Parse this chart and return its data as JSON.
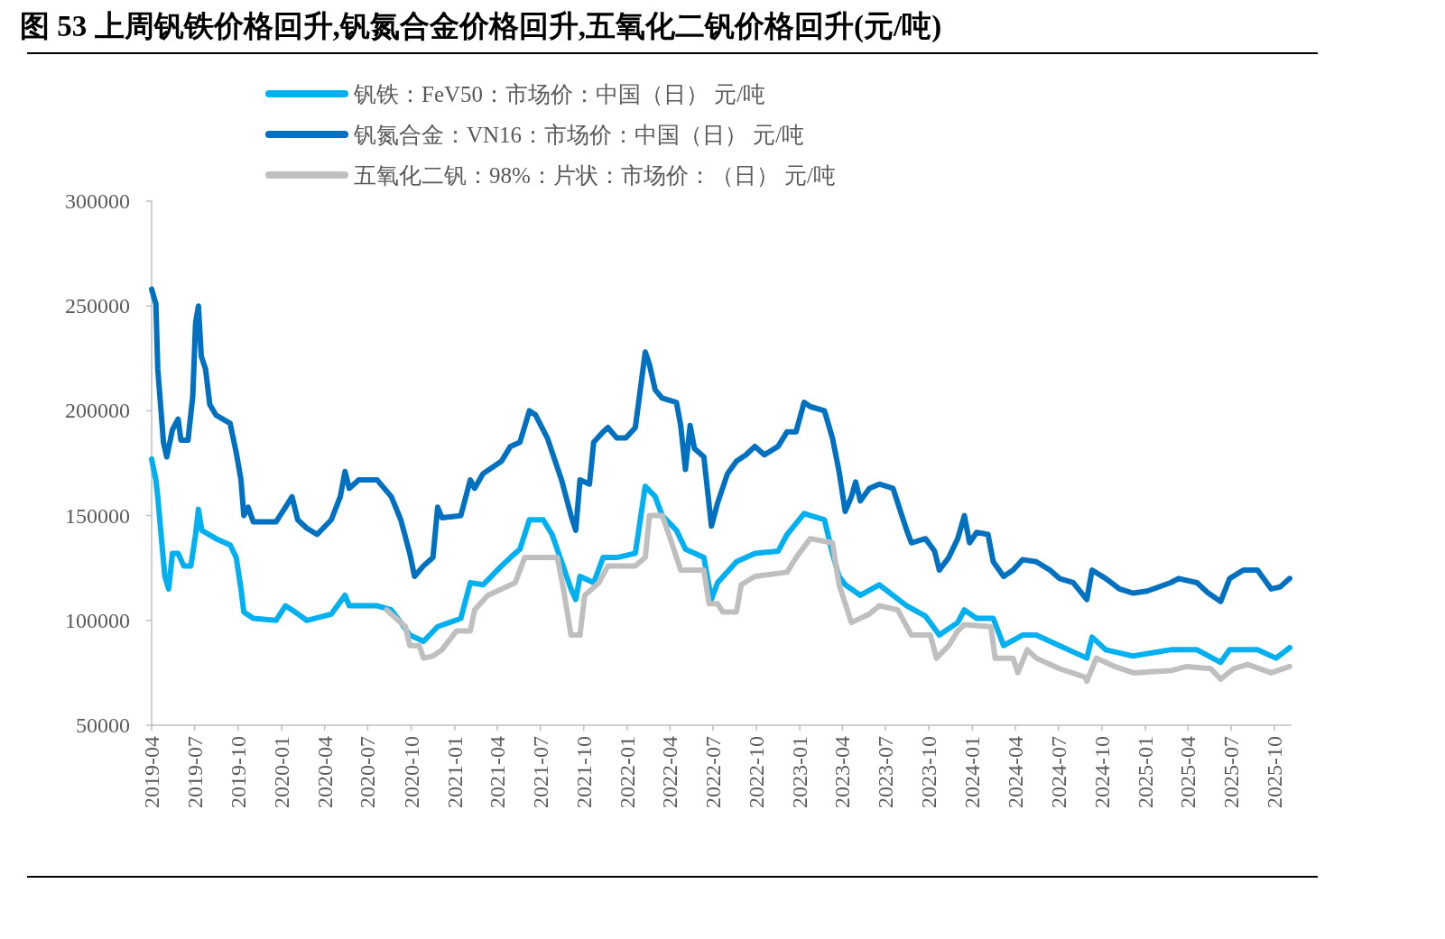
{
  "chart_data": {
    "type": "line",
    "title": "图 53 上周钒铁价格回升,钒氮合金价格回升,五氧化二钒价格回升(元/吨)",
    "xlim": [
      "2019-04-01",
      "2025-11-06"
    ],
    "xticks": [
      "2019-04",
      "2019-07",
      "2019-10",
      "2020-01",
      "2020-04",
      "2020-07",
      "2020-10",
      "2021-01",
      "2021-04",
      "2021-07",
      "2021-10",
      "2022-01",
      "2022-04",
      "2022-07",
      "2022-10",
      "2023-01",
      "2023-04",
      "2023-07",
      "2023-10",
      "2024-01",
      "2024-04",
      "2024-07",
      "2024-10",
      "2025-01",
      "2025-04",
      "2025-07",
      "2025-10"
    ],
    "ylim": [
      50000,
      300000
    ],
    "yticks": [
      50000,
      100000,
      150000,
      200000,
      250000,
      300000
    ],
    "legend": "top",
    "series": [
      {
        "name": "钒铁：FeV50：市场价：中国（日） 元/吨",
        "color": "#00b0f0",
        "x": [
          "2019-04-01",
          "2019-04-10",
          "2019-04-14",
          "2019-04-21",
          "2019-04-29",
          "2019-05-07",
          "2019-05-15",
          "2019-05-27",
          "2019-06-08",
          "2019-06-23",
          "2019-07-03",
          "2019-07-09",
          "2019-07-16",
          "2019-08-15",
          "2019-09-14",
          "2019-09-27",
          "2019-10-07",
          "2019-10-13",
          "2019-11-02",
          "2019-12-20",
          "2020-01-09",
          "2020-01-23",
          "2020-02-23",
          "2020-04-15",
          "2020-05-14",
          "2020-05-23",
          "2020-07-21",
          "2020-08-20",
          "2020-09-09",
          "2020-09-28",
          "2020-10-27",
          "2020-11-26",
          "2021-01-14",
          "2021-02-03",
          "2021-03-02",
          "2021-04-10",
          "2021-04-29",
          "2021-05-19",
          "2021-06-08",
          "2021-07-07",
          "2021-07-26",
          "2021-08-15",
          "2021-09-04",
          "2021-09-14",
          "2021-09-23",
          "2021-10-22",
          "2021-11-11",
          "2021-12-10",
          "2022-01-18",
          "2022-02-08",
          "2022-03-01",
          "2022-03-16",
          "2022-04-15",
          "2022-05-04",
          "2022-06-12",
          "2022-06-28",
          "2022-07-11",
          "2022-08-20",
          "2022-09-28",
          "2022-11-16",
          "2022-12-05",
          "2023-01-10",
          "2023-02-22",
          "2023-03-11",
          "2023-03-25",
          "2023-04-07",
          "2023-05-09",
          "2023-06-18",
          "2023-08-15",
          "2023-09-24",
          "2023-10-23",
          "2023-12-01",
          "2023-12-15",
          "2024-01-10",
          "2024-02-14",
          "2024-03-07",
          "2024-04-16",
          "2024-05-15",
          "2024-07-03",
          "2024-08-30",
          "2024-09-10",
          "2024-10-09",
          "2024-12-06",
          "2025-02-23",
          "2025-04-20",
          "2025-06-09",
          "2025-06-28",
          "2025-08-26",
          "2025-10-04",
          "2025-11-02"
        ],
        "values": [
          177000,
          167000,
          159000,
          141000,
          121000,
          115000,
          132000,
          132000,
          126000,
          126000,
          141000,
          153000,
          143000,
          139000,
          136000,
          130000,
          115000,
          104000,
          101000,
          100000,
          107000,
          105000,
          100000,
          103000,
          112000,
          107000,
          107000,
          105000,
          99000,
          93000,
          90000,
          97000,
          101000,
          118000,
          117000,
          126000,
          130000,
          134000,
          148000,
          148000,
          141000,
          128000,
          115000,
          110000,
          121000,
          118000,
          130000,
          130000,
          132000,
          164000,
          159000,
          150000,
          143000,
          134000,
          130000,
          110000,
          118000,
          128000,
          132000,
          133000,
          141000,
          151000,
          148000,
          132000,
          121000,
          117000,
          112000,
          117000,
          107000,
          102000,
          93000,
          99000,
          105000,
          101000,
          101000,
          88000,
          93000,
          93000,
          88000,
          82000,
          92000,
          86000,
          83000,
          86000,
          86000,
          80000,
          86000,
          86000,
          82000,
          87000
        ]
      },
      {
        "name": "钒氮合金：VN16：市场价：中国（日） 元/吨",
        "color": "#0070c0",
        "x": [
          "2019-04-01",
          "2019-04-10",
          "2019-04-14",
          "2019-04-26",
          "2019-05-03",
          "2019-05-15",
          "2019-05-27",
          "2019-06-02",
          "2019-06-17",
          "2019-06-27",
          "2019-07-03",
          "2019-07-09",
          "2019-07-15",
          "2019-07-24",
          "2019-08-02",
          "2019-08-15",
          "2019-09-14",
          "2019-09-27",
          "2019-10-07",
          "2019-10-13",
          "2019-10-22",
          "2019-11-02",
          "2019-12-20",
          "2020-01-09",
          "2020-01-23",
          "2020-02-04",
          "2020-02-23",
          "2020-03-16",
          "2020-04-15",
          "2020-05-04",
          "2020-05-14",
          "2020-05-23",
          "2020-06-12",
          "2020-07-21",
          "2020-08-20",
          "2020-09-09",
          "2020-09-28",
          "2020-10-08",
          "2020-10-27",
          "2020-11-16",
          "2020-11-26",
          "2020-12-05",
          "2021-01-14",
          "2021-02-03",
          "2021-02-12",
          "2021-03-02",
          "2021-04-10",
          "2021-04-29",
          "2021-05-19",
          "2021-06-08",
          "2021-06-21",
          "2021-07-16",
          "2021-08-15",
          "2021-09-04",
          "2021-09-14",
          "2021-09-23",
          "2021-10-13",
          "2021-10-22",
          "2021-11-11",
          "2021-11-21",
          "2021-12-10",
          "2021-12-29",
          "2022-01-18",
          "2022-02-08",
          "2022-02-17",
          "2022-03-01",
          "2022-03-16",
          "2022-04-15",
          "2022-04-24",
          "2022-05-04",
          "2022-05-14",
          "2022-05-23",
          "2022-06-12",
          "2022-06-28",
          "2022-07-11",
          "2022-08-01",
          "2022-08-20",
          "2022-09-09",
          "2022-09-28",
          "2022-10-18",
          "2022-11-16",
          "2022-12-05",
          "2022-12-24",
          "2023-01-10",
          "2023-01-23",
          "2023-02-22",
          "2023-03-11",
          "2023-03-25",
          "2023-04-07",
          "2023-04-20",
          "2023-04-29",
          "2023-05-09",
          "2023-05-28",
          "2023-06-18",
          "2023-07-17",
          "2023-08-02",
          "2023-08-15",
          "2023-08-25",
          "2023-09-24",
          "2023-10-13",
          "2023-10-23",
          "2023-11-12",
          "2023-12-01",
          "2023-12-15",
          "2023-12-26",
          "2024-01-10",
          "2024-02-03",
          "2024-02-14",
          "2024-03-07",
          "2024-03-27",
          "2024-04-16",
          "2024-05-15",
          "2024-06-13",
          "2024-07-03",
          "2024-08-01",
          "2024-08-30",
          "2024-09-10",
          "2024-10-09",
          "2024-11-07",
          "2024-12-06",
          "2025-01-05",
          "2025-02-23",
          "2025-03-12",
          "2025-04-20",
          "2025-05-14",
          "2025-06-09",
          "2025-06-28",
          "2025-07-27",
          "2025-08-26",
          "2025-09-24",
          "2025-10-13",
          "2025-11-02"
        ],
        "values": [
          258000,
          251000,
          220000,
          185000,
          178000,
          191000,
          196000,
          186000,
          186000,
          207000,
          242000,
          250000,
          226000,
          220000,
          203000,
          198000,
          194000,
          180000,
          167000,
          150000,
          154000,
          147000,
          147000,
          154000,
          159000,
          148000,
          144000,
          141000,
          148000,
          159000,
          171000,
          163000,
          167000,
          167000,
          159000,
          148000,
          132000,
          121000,
          126000,
          130000,
          154000,
          149000,
          150000,
          167000,
          163000,
          170000,
          176000,
          183000,
          185000,
          200000,
          198000,
          187000,
          167000,
          150000,
          143000,
          167000,
          165000,
          185000,
          190000,
          192000,
          187000,
          187000,
          192000,
          228000,
          222000,
          210000,
          206000,
          204000,
          193000,
          172000,
          193000,
          182000,
          178000,
          145000,
          156000,
          170000,
          176000,
          179000,
          183000,
          179000,
          183000,
          190000,
          190000,
          204000,
          202000,
          200000,
          187000,
          171000,
          152000,
          159000,
          166000,
          157000,
          163000,
          165000,
          163000,
          152000,
          143000,
          137000,
          139000,
          133000,
          124000,
          130000,
          139000,
          150000,
          137000,
          142000,
          141000,
          128000,
          121000,
          124000,
          129000,
          128000,
          124000,
          120000,
          118000,
          110000,
          124000,
          120000,
          115000,
          113000,
          114000,
          118000,
          120000,
          118000,
          113000,
          109000,
          120000,
          124000,
          124000,
          115000,
          116000,
          120000
        ]
      },
      {
        "name": "五氧化二钒：98%：片状：市场价：（日） 元/吨",
        "color": "#bfbfbf",
        "x": [
          "2020-08-10",
          "2020-08-30",
          "2020-09-19",
          "2020-09-28",
          "2020-10-18",
          "2020-10-27",
          "2020-11-16",
          "2020-12-05",
          "2021-01-05",
          "2021-02-03",
          "2021-02-12",
          "2021-03-12",
          "2021-04-10",
          "2021-05-09",
          "2021-05-29",
          "2021-08-06",
          "2021-08-19",
          "2021-09-04",
          "2021-09-23",
          "2021-10-03",
          "2021-11-02",
          "2021-11-21",
          "2022-01-18",
          "2022-02-08",
          "2022-02-17",
          "2022-03-16",
          "2022-04-02",
          "2022-04-24",
          "2022-06-12",
          "2022-06-23",
          "2022-07-11",
          "2022-07-22",
          "2022-08-20",
          "2022-08-30",
          "2022-09-28",
          "2022-12-05",
          "2022-12-24",
          "2023-01-23",
          "2023-03-11",
          "2023-03-25",
          "2023-04-20",
          "2023-05-28",
          "2023-06-18",
          "2023-07-27",
          "2023-08-25",
          "2023-10-04",
          "2023-10-17",
          "2023-11-12",
          "2023-12-01",
          "2023-12-15",
          "2024-02-09",
          "2024-02-18",
          "2024-03-27",
          "2024-04-06",
          "2024-04-26",
          "2024-05-15",
          "2024-07-03",
          "2024-08-26",
          "2024-08-30",
          "2024-09-19",
          "2024-10-09",
          "2024-10-28",
          "2024-12-06",
          "2025-02-23",
          "2025-03-29",
          "2025-05-19",
          "2025-06-09",
          "2025-07-07",
          "2025-08-05",
          "2025-09-24",
          "2025-11-02"
        ],
        "values": [
          105000,
          101000,
          97000,
          88000,
          88000,
          82000,
          83000,
          86000,
          95000,
          95000,
          105000,
          112000,
          115000,
          118000,
          130000,
          130000,
          115000,
          93000,
          93000,
          112000,
          118000,
          126000,
          126000,
          130000,
          150000,
          150000,
          139000,
          124000,
          124000,
          108000,
          108000,
          104000,
          104000,
          117000,
          121000,
          123000,
          130000,
          139000,
          137000,
          117000,
          99000,
          103000,
          107000,
          105000,
          93000,
          93000,
          82000,
          88000,
          95000,
          98000,
          97000,
          82000,
          82000,
          75000,
          86000,
          82000,
          77000,
          73000,
          71000,
          82000,
          80000,
          78000,
          75000,
          76000,
          78000,
          77000,
          72000,
          77000,
          79000,
          75000,
          78000
        ]
      }
    ]
  }
}
